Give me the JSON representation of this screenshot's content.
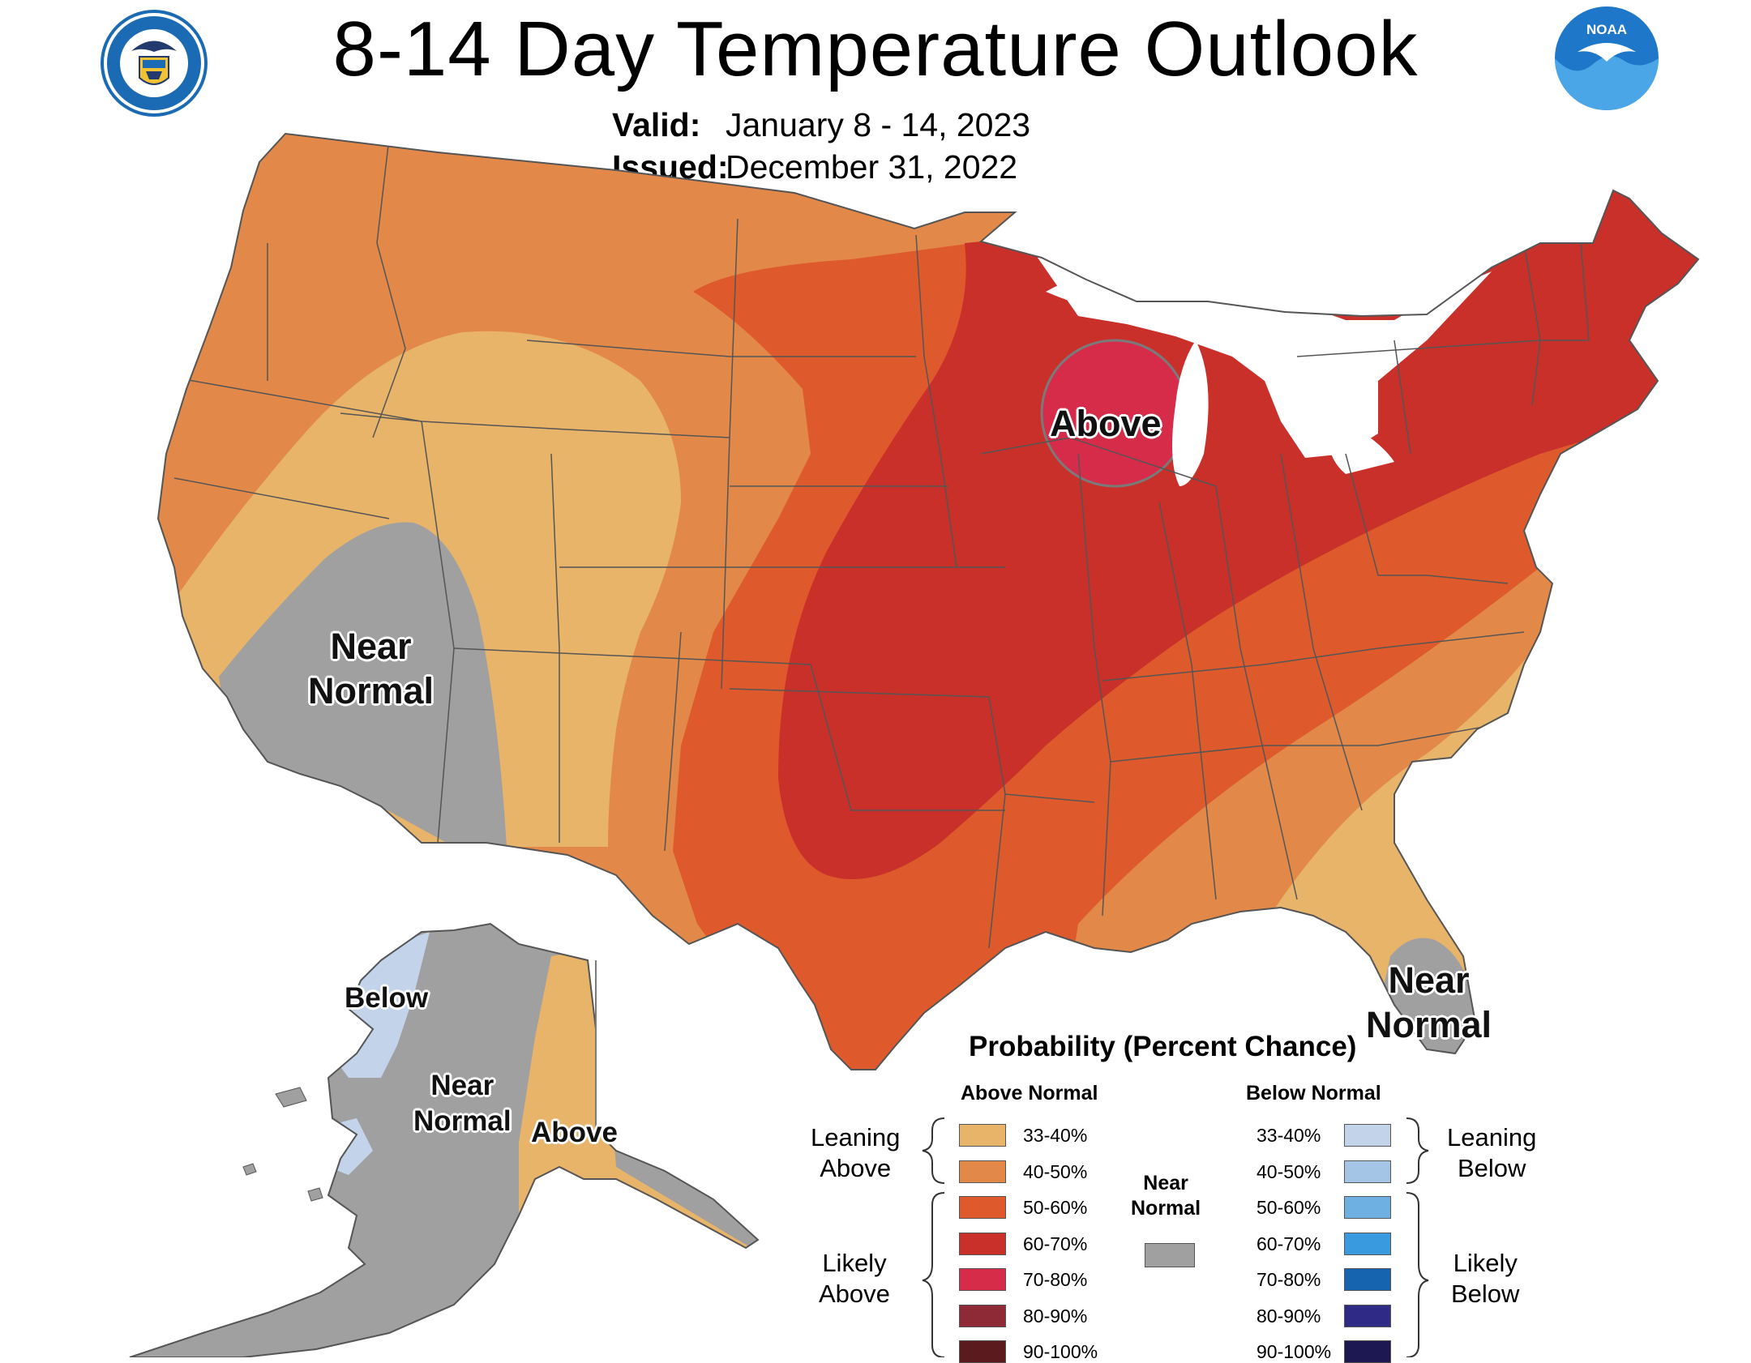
{
  "header": {
    "title": "8-14 Day Temperature Outlook",
    "valid_label": "Valid:",
    "valid_value": "January 8 - 14, 2023",
    "issued_label": "Issued:",
    "issued_value": "December 31, 2022"
  },
  "logos": {
    "left": "doc-seal-icon",
    "right": "noaa-logo-icon",
    "right_text": "NOAA"
  },
  "map_labels": {
    "above_midwest": "Above",
    "near_normal_southwest_1": "Near",
    "near_normal_southwest_2": "Normal",
    "near_normal_florida_1": "Near",
    "near_normal_florida_2": "Normal",
    "alaska_below": "Below",
    "alaska_near_1": "Near",
    "alaska_near_2": "Normal",
    "alaska_above": "Above"
  },
  "legend": {
    "title": "Probability (Percent Chance)",
    "above_header": "Above Normal",
    "below_header": "Below Normal",
    "near_normal_1": "Near",
    "near_normal_2": "Normal",
    "near_normal_color": "#a0a0a0",
    "leaning_above_1": "Leaning",
    "leaning_above_2": "Above",
    "likely_above_1": "Likely",
    "likely_above_2": "Above",
    "leaning_below_1": "Leaning",
    "leaning_below_2": "Below",
    "likely_below_1": "Likely",
    "likely_below_2": "Below",
    "above": [
      {
        "label": "33-40%",
        "color": "#e8b46a"
      },
      {
        "label": "40-50%",
        "color": "#e2894a"
      },
      {
        "label": "50-60%",
        "color": "#de5a2c"
      },
      {
        "label": "60-70%",
        "color": "#c9302a"
      },
      {
        "label": "70-80%",
        "color": "#d72b4a"
      },
      {
        "label": "80-90%",
        "color": "#8e2a36"
      },
      {
        "label": "90-100%",
        "color": "#5a1a1e"
      }
    ],
    "below": [
      {
        "label": "33-40%",
        "color": "#c3d3ea"
      },
      {
        "label": "40-50%",
        "color": "#a4c5e6"
      },
      {
        "label": "50-60%",
        "color": "#6eb0e2"
      },
      {
        "label": "60-70%",
        "color": "#3a9ae0"
      },
      {
        "label": "70-80%",
        "color": "#1664b0"
      },
      {
        "label": "80-90%",
        "color": "#2e2a86"
      },
      {
        "label": "90-100%",
        "color": "#1e1852"
      }
    ]
  }
}
